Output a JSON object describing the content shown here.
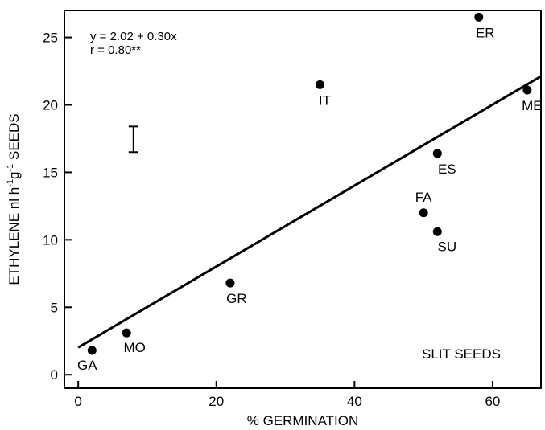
{
  "chart_data": {
    "type": "scatter",
    "title": "",
    "xlabel": "% GERMINATION",
    "ylabel_parts": {
      "main": "ETHYLENE nl h",
      "exp1": "-1",
      "mid": "g",
      "exp2": "-1",
      "end": " SEEDS"
    },
    "xlim": [
      -2,
      67
    ],
    "ylim": [
      -1,
      27
    ],
    "xticks": [
      0,
      20,
      40,
      60
    ],
    "yticks": [
      0,
      5,
      10,
      15,
      20,
      25
    ],
    "grid": false,
    "points": [
      {
        "label": "GA",
        "x": 2,
        "y": 1.8
      },
      {
        "label": "MO",
        "x": 7,
        "y": 3.1
      },
      {
        "label": "GR",
        "x": 22,
        "y": 6.8
      },
      {
        "label": "IT",
        "x": 35,
        "y": 21.5
      },
      {
        "label": "FA",
        "x": 50,
        "y": 12.0
      },
      {
        "label": "SU",
        "x": 52,
        "y": 10.6
      },
      {
        "label": "ES",
        "x": 52,
        "y": 16.4
      },
      {
        "label": "ER",
        "x": 58,
        "y": 26.5
      },
      {
        "label": "ME",
        "x": 65,
        "y": 21.1
      }
    ],
    "regression": {
      "intercept": 2.02,
      "slope": 0.3,
      "x_range": [
        0,
        67
      ],
      "equation_text": "y = 2.02 + 0.30x",
      "r_text": "r = 0.80**"
    },
    "error_bar": {
      "x": 8,
      "y_low": 16.5,
      "y_high": 18.4
    },
    "annotation": "SLIT SEEDS"
  }
}
